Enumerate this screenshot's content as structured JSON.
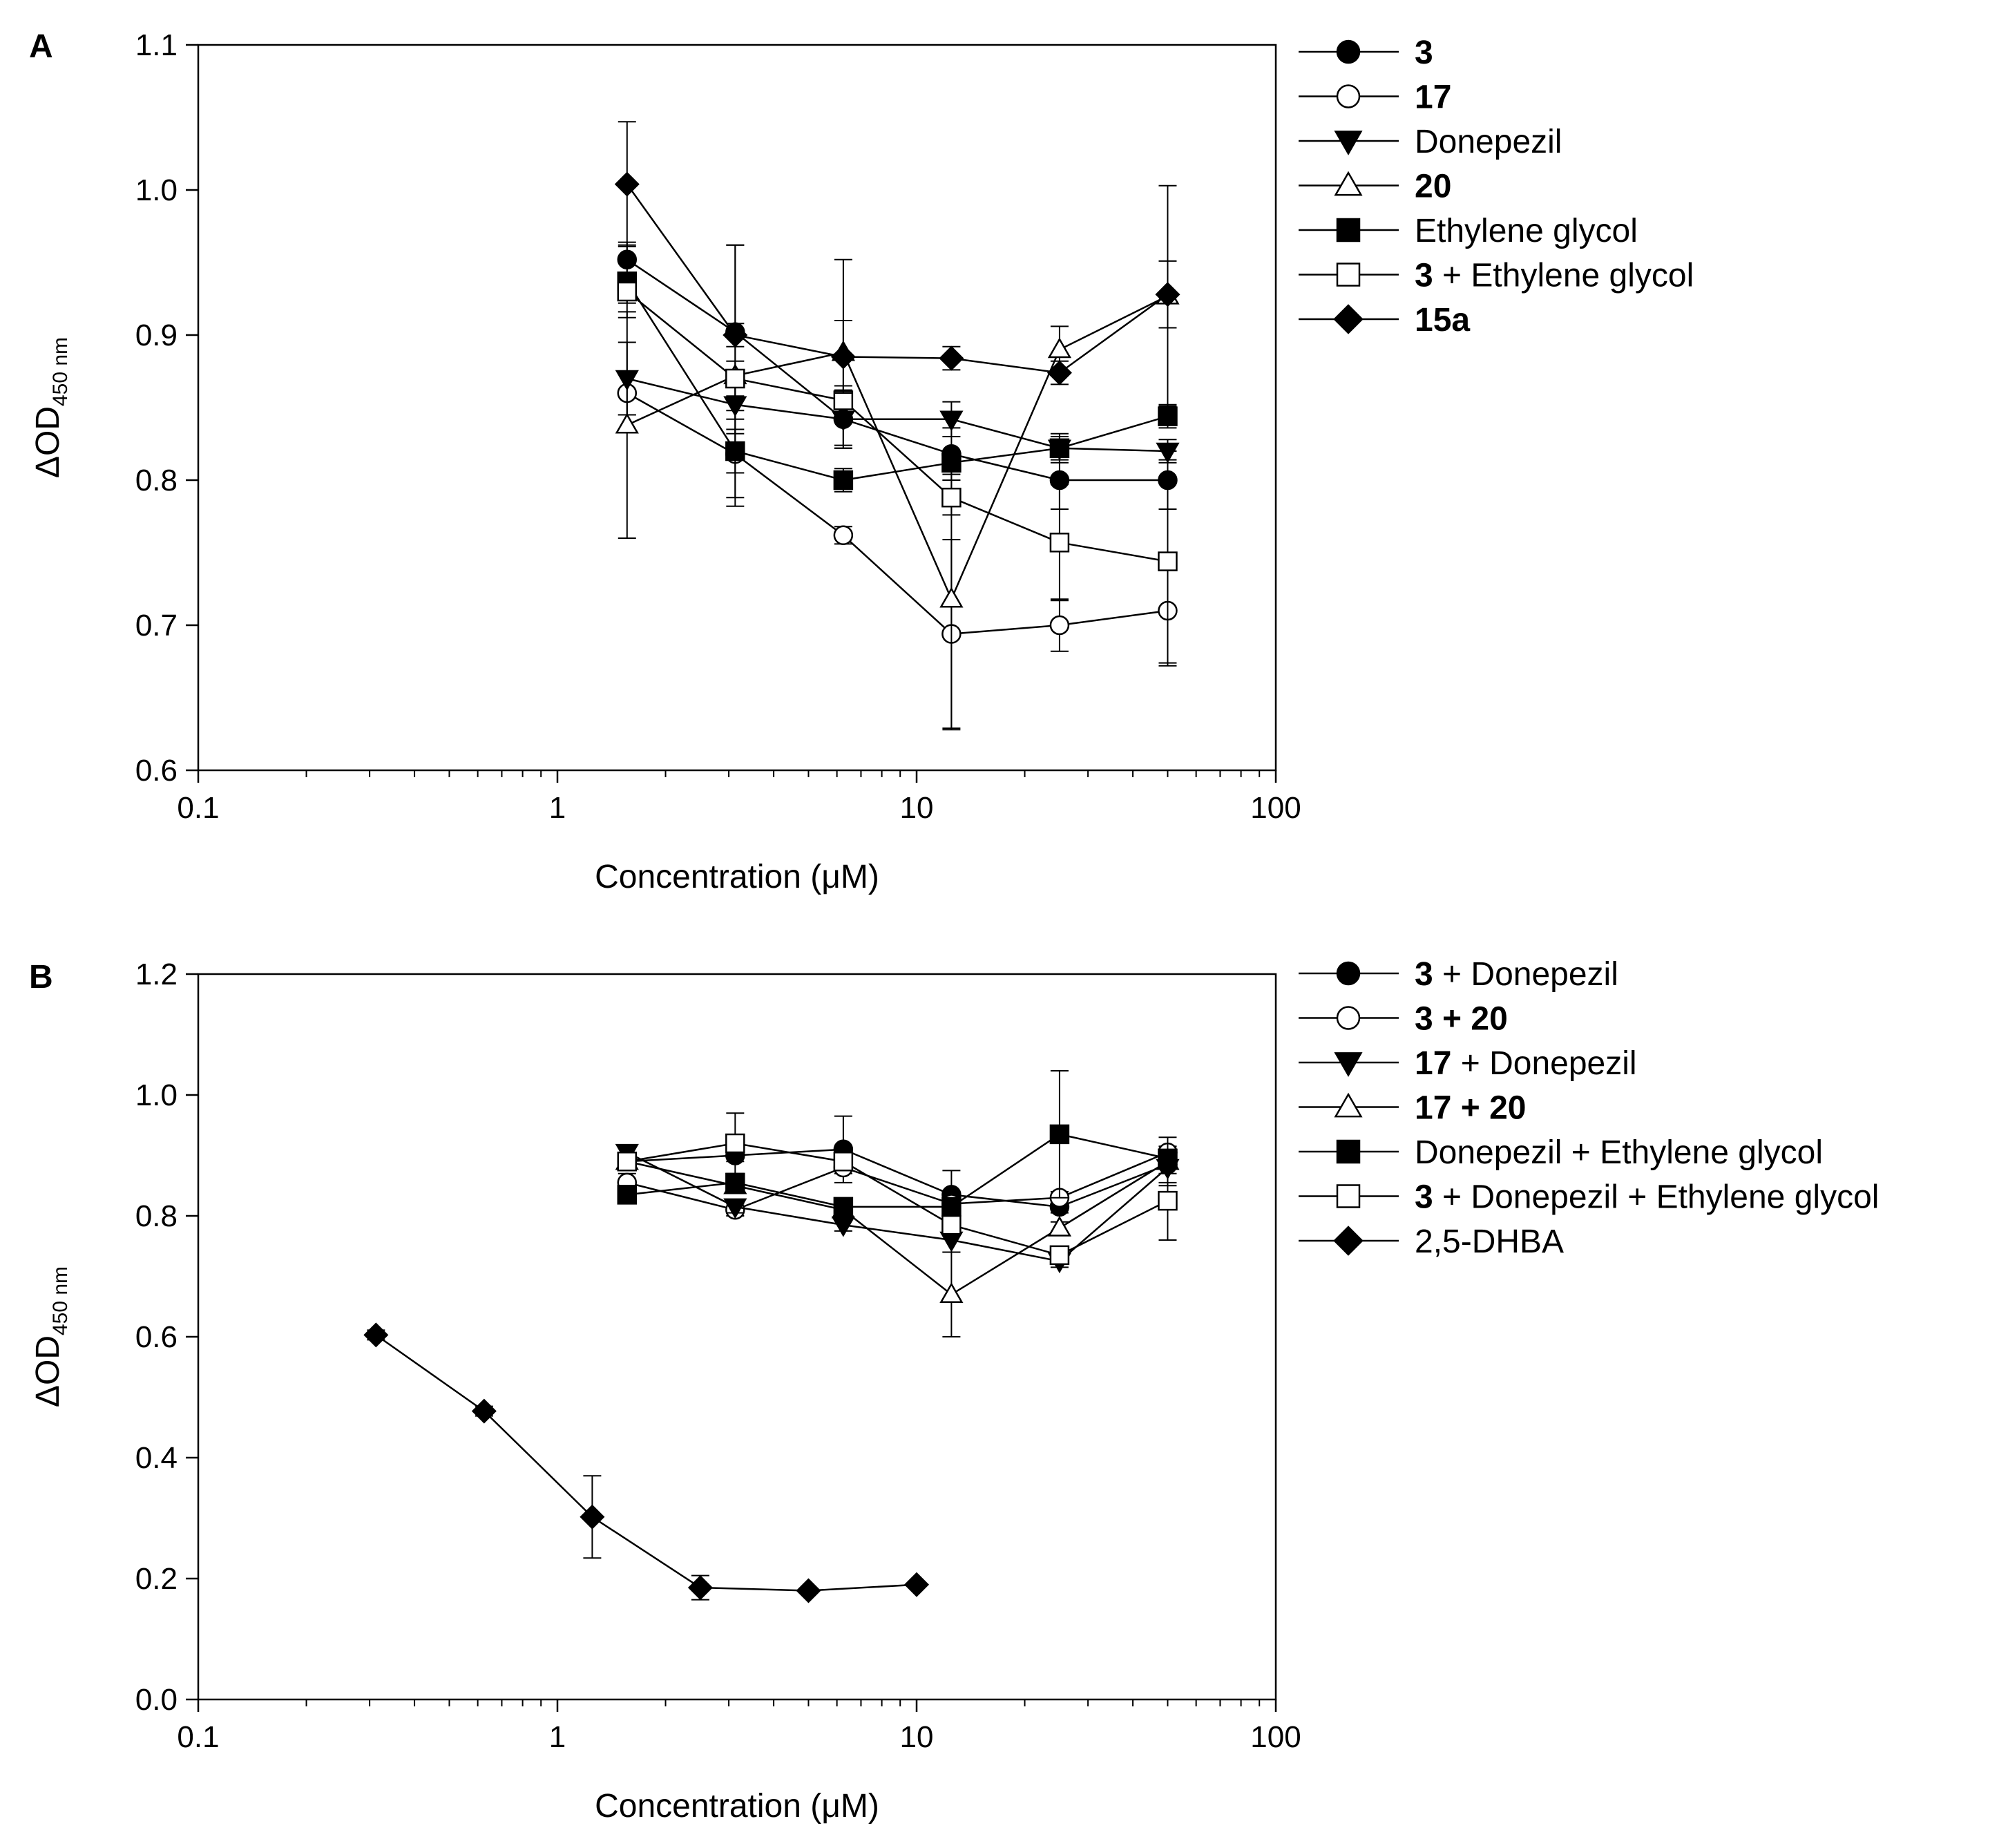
{
  "chart_data": [
    {
      "panel": "A",
      "type": "line",
      "xscale": "log",
      "xlabel": "Concentration (μM)",
      "ylabel_main": "ΔOD",
      "ylabel_sub": "450 nm",
      "xlim": [
        0.1,
        100
      ],
      "ylim": [
        0.6,
        1.1
      ],
      "xticks": [
        0.1,
        1,
        10,
        100
      ],
      "xtick_labels": [
        "0.1",
        "1",
        "10",
        "100"
      ],
      "yticks": [
        0.6,
        0.7,
        0.8,
        0.9,
        1.0,
        1.1
      ],
      "ytick_labels": [
        "0.6",
        "0.7",
        "0.8",
        "0.9",
        "1.0",
        "1.1"
      ],
      "legend_position": "right",
      "x": [
        1.5625,
        3.125,
        6.25,
        12.5,
        25,
        50
      ],
      "series": [
        {
          "name": "3",
          "legend": [
            {
              "text": "3",
              "bold": true
            }
          ],
          "marker": "circle",
          "filled": true,
          "values": [
            0.952,
            0.902,
            0.842,
            0.818,
            0.8,
            0.8
          ],
          "errors": [
            0.012,
            0.06,
            0.02,
            0.018,
            0.02,
            0.02
          ]
        },
        {
          "name": "17",
          "legend": [
            {
              "text": "17",
              "bold": true
            }
          ],
          "marker": "circle",
          "filled": false,
          "values": [
            0.86,
            0.818,
            0.762,
            0.694,
            0.7,
            0.71
          ],
          "errors": [
            0.015,
            0.03,
            0.006,
            0.065,
            0.018,
            0.038
          ]
        },
        {
          "name": "Donepezil",
          "legend": [
            {
              "text": "Donepezil",
              "bold": false
            }
          ],
          "marker": "triangle-down",
          "filled": true,
          "values": [
            0.87,
            0.852,
            0.842,
            0.842,
            0.822,
            0.82
          ],
          "errors": [
            0.025,
            0.02,
            0.02,
            0.012,
            0.01,
            0.008
          ]
        },
        {
          "name": "20",
          "legend": [
            {
              "text": "20",
              "bold": true
            }
          ],
          "marker": "triangle-up",
          "filled": false,
          "values": [
            0.838,
            0.872,
            0.888,
            0.718,
            0.89,
            0.927
          ],
          "errors": [
            0.078,
            0.09,
            0.064,
            0.09,
            0.016,
            0.076
          ]
        },
        {
          "name": "Ethylene glycol",
          "legend": [
            {
              "text": "Ethylene glycol",
              "bold": false
            }
          ],
          "marker": "square",
          "filled": true,
          "values": [
            0.937,
            0.82,
            0.8,
            0.812,
            0.822,
            0.844
          ],
          "errors": [
            0.025,
            0.015,
            0.008,
            0.008,
            0.008,
            0.008
          ]
        },
        {
          "name": "3 + Ethylene glycol",
          "legend": [
            {
              "text": "3",
              "bold": true
            },
            {
              "text": " + Ethylene glycol",
              "bold": false
            }
          ],
          "marker": "square",
          "filled": false,
          "values": [
            0.93,
            0.87,
            0.855,
            0.788,
            0.757,
            0.744
          ],
          "errors": [
            0.008,
            0.012,
            0.01,
            0.012,
            0.04,
            0.07
          ]
        },
        {
          "name": "15a",
          "legend": [
            {
              "text": "15a",
              "bold": true
            }
          ],
          "marker": "diamond",
          "filled": true,
          "values": [
            1.004,
            0.9,
            0.885,
            0.884,
            0.874,
            0.928
          ],
          "errors": [
            0.043,
            0.008,
            0.025,
            0.008,
            0.008,
            0.023
          ]
        }
      ]
    },
    {
      "panel": "B",
      "type": "line",
      "xscale": "log",
      "xlabel": "Concentration (μM)",
      "ylabel_main": "ΔOD",
      "ylabel_sub": "450 nm",
      "xlim": [
        0.1,
        100
      ],
      "ylim": [
        0.0,
        1.2
      ],
      "xticks": [
        0.1,
        1,
        10,
        100
      ],
      "xtick_labels": [
        "0.1",
        "1",
        "10",
        "100"
      ],
      "yticks": [
        0.0,
        0.2,
        0.4,
        0.6,
        0.8,
        1.0,
        1.2
      ],
      "ytick_labels": [
        "0.0",
        "0.2",
        "0.4",
        "0.6",
        "0.8",
        "1.0",
        "1.2"
      ],
      "legend_position": "right",
      "series": [
        {
          "name": "3 + Donepezil",
          "legend": [
            {
              "text": "3",
              "bold": true
            },
            {
              "text": " + Donepezil",
              "bold": false
            }
          ],
          "marker": "circle",
          "filled": true,
          "x": [
            1.5625,
            3.125,
            6.25,
            12.5,
            25,
            50
          ],
          "values": [
            0.89,
            0.9,
            0.91,
            0.835,
            0.815,
            0.885
          ],
          "errors": [
            0.01,
            0.01,
            0.055,
            0.04,
            0.01,
            0.03
          ]
        },
        {
          "name": "3 + 20",
          "legend": [
            {
              "text": "3 + 20",
              "bold": true
            }
          ],
          "marker": "circle",
          "filled": false,
          "x": [
            1.5625,
            3.125,
            6.25,
            12.5,
            25,
            50
          ],
          "values": [
            0.855,
            0.81,
            0.88,
            0.82,
            0.83,
            0.905
          ],
          "errors": [
            0.015,
            0.01,
            0.01,
            0.01,
            0.01,
            0.01
          ]
        },
        {
          "name": "17 + Donepezil",
          "legend": [
            {
              "text": "17",
              "bold": true
            },
            {
              "text": " + Donepezil",
              "bold": false
            }
          ],
          "marker": "triangle-down",
          "filled": true,
          "x": [
            1.5625,
            3.125,
            6.25,
            12.5,
            25,
            50
          ],
          "values": [
            0.905,
            0.815,
            0.785,
            0.76,
            0.725,
            0.88
          ],
          "errors": [
            0.01,
            0.01,
            0.01,
            0.02,
            0.01,
            0.01
          ]
        },
        {
          "name": "17 + 20",
          "legend": [
            {
              "text": "17 + 20",
              "bold": true
            }
          ],
          "marker": "triangle-up",
          "filled": false,
          "x": [
            1.5625,
            3.125,
            6.25,
            12.5,
            25,
            50
          ],
          "values": [
            0.89,
            0.85,
            0.81,
            0.67,
            0.78,
            0.89
          ],
          "errors": [
            0.01,
            0.01,
            0.01,
            0.07,
            0.01,
            0.04
          ]
        },
        {
          "name": "Donepezil + Ethylene glycol",
          "legend": [
            {
              "text": "Donepezil + Ethylene glycol",
              "bold": false
            }
          ],
          "marker": "square",
          "filled": true,
          "x": [
            1.5625,
            3.125,
            6.25,
            12.5,
            25,
            50
          ],
          "values": [
            0.835,
            0.855,
            0.815,
            0.815,
            0.935,
            0.895
          ],
          "errors": [
            0.01,
            0.01,
            0.01,
            0.01,
            0.105,
            0.01
          ]
        },
        {
          "name": "3 + Donepezil + Ethylene glycol",
          "legend": [
            {
              "text": "3",
              "bold": true
            },
            {
              "text": " + Donepezil + Ethylene glycol",
              "bold": false
            }
          ],
          "marker": "square",
          "filled": false,
          "x": [
            1.5625,
            3.125,
            6.25,
            12.5,
            25,
            50
          ],
          "values": [
            0.89,
            0.92,
            0.89,
            0.785,
            0.735,
            0.825
          ],
          "errors": [
            0.01,
            0.05,
            0.01,
            0.01,
            0.01,
            0.065
          ]
        },
        {
          "name": "2,5-DHBA",
          "legend": [
            {
              "text": "2,5-DHBA",
              "bold": false
            }
          ],
          "marker": "diamond",
          "filled": true,
          "x": [
            0.3125,
            0.625,
            1.25,
            2.5,
            5,
            10
          ],
          "values": [
            0.603,
            0.477,
            0.302,
            0.185,
            0.18,
            0.19
          ],
          "errors": [
            0.008,
            0.008,
            0.068,
            0.02,
            0.004,
            0.004
          ]
        }
      ]
    }
  ]
}
